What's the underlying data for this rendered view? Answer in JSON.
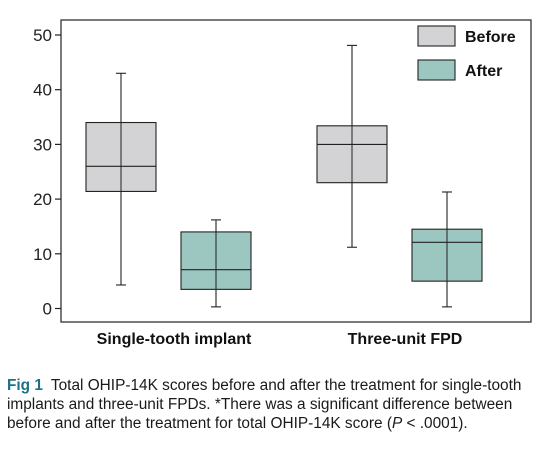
{
  "chart_data": {
    "type": "box",
    "categories": [
      "Single-tooth implant",
      "Three-unit FPD"
    ],
    "ylim": [
      0,
      50
    ],
    "yticks": [
      0,
      10,
      20,
      30,
      40,
      50
    ],
    "grid": false,
    "legend_position": "top-right",
    "series": [
      {
        "name": "Before",
        "color": "#d3d3d5",
        "boxes": [
          {
            "min": 4.3,
            "q1": 21.4,
            "median": 26.0,
            "q3": 34.0,
            "max": 43.0
          },
          {
            "min": 11.2,
            "q1": 23.0,
            "median": 30.0,
            "q3": 33.4,
            "max": 48.1
          }
        ]
      },
      {
        "name": "After",
        "color": "#9cc6c0",
        "boxes": [
          {
            "min": 0.3,
            "q1": 3.5,
            "median": 7.1,
            "q3": 14.0,
            "max": 16.2
          },
          {
            "min": 0.3,
            "q1": 5.0,
            "median": 12.1,
            "q3": 14.5,
            "max": 21.3
          }
        ]
      }
    ]
  },
  "caption": {
    "label": "Fig 1",
    "text_before_p": "Total OHIP-14K scores before and after the treatment for single-tooth implants and three-unit FPDs. *There was a significant difference between before and after the treatment for total OHIP-14K score (",
    "p_symbol": "P",
    "text_after_p": " < .0001)."
  }
}
